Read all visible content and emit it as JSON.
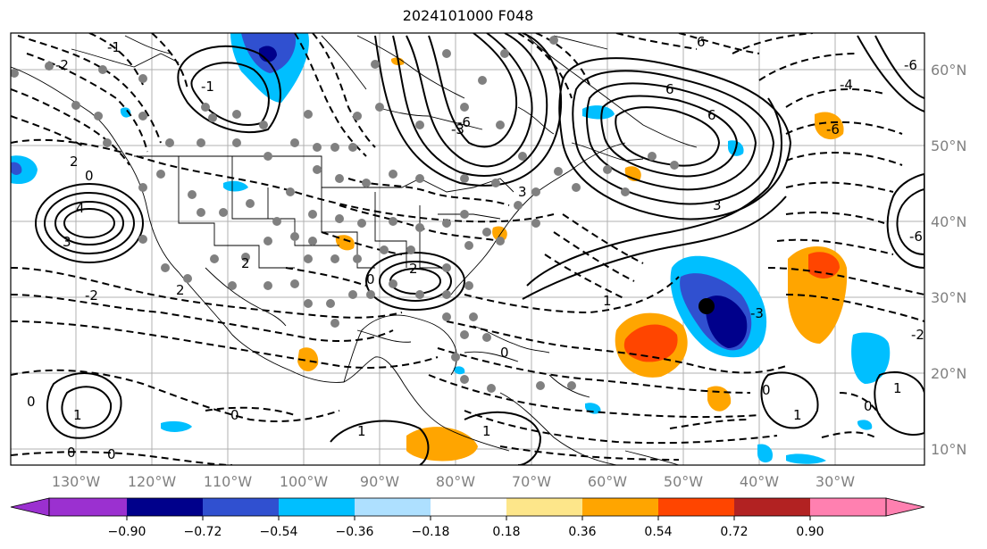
{
  "title": "2024101000 F048",
  "map": {
    "lon_labels": [
      "130°W",
      "120°W",
      "110°W",
      "100°W",
      "90°W",
      "80°W",
      "70°W",
      "60°W",
      "50°W",
      "40°W",
      "30°W"
    ],
    "lat_labels": [
      "60°N",
      "50°N",
      "40°N",
      "30°N",
      "20°N",
      "10°N"
    ],
    "contour_labels": [
      "0",
      "-1",
      "-2",
      "-3",
      "-4",
      "2",
      "3",
      "4",
      "-6",
      "6",
      "1"
    ],
    "marker": "black dot"
  },
  "colorbar": {
    "ticks": [
      "−0.90",
      "−0.72",
      "−0.54",
      "−0.36",
      "−0.18",
      "0.18",
      "0.36",
      "0.54",
      "0.72",
      "0.90"
    ],
    "colors": [
      "#9b30d0",
      "#00008b",
      "#3050d0",
      "#00bfff",
      "#aee0ff",
      "#ffffff",
      "#fde68a",
      "#ffa500",
      "#ff4500",
      "#b22222",
      "#ff80b0"
    ]
  }
}
